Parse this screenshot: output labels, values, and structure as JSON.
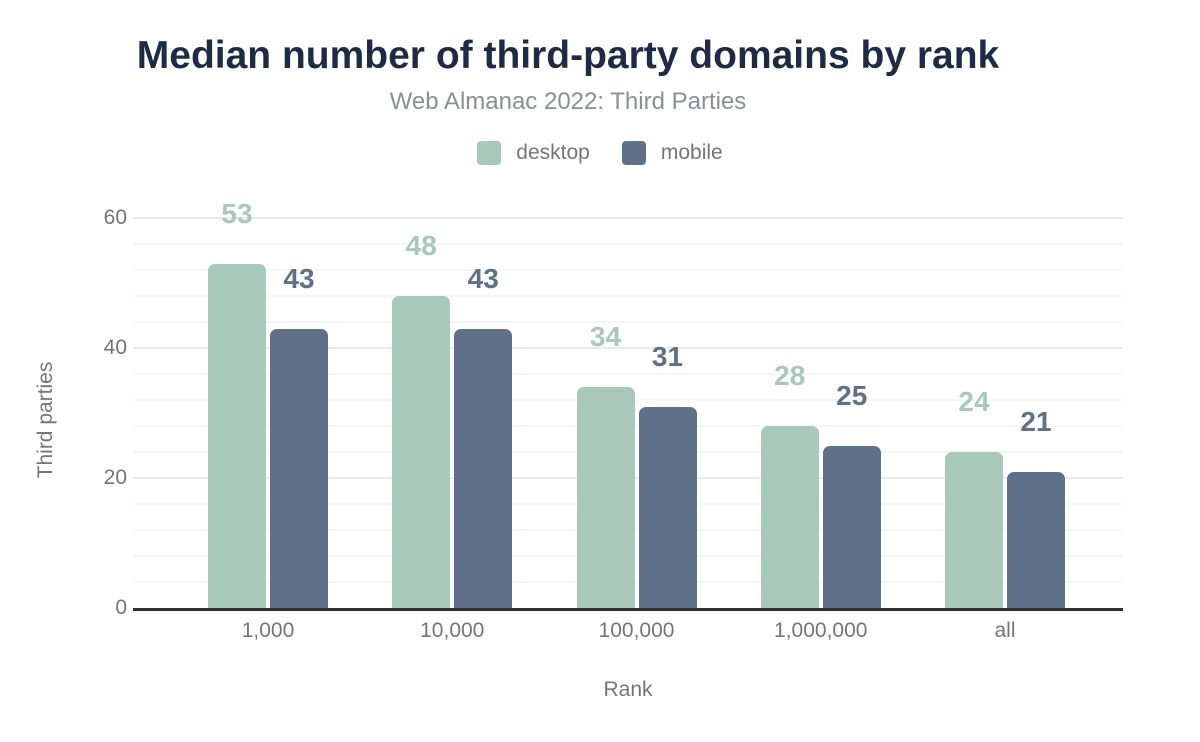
{
  "chart_data": {
    "type": "bar",
    "title": "Median number of third-party domains by rank",
    "subtitle": "Web Almanac 2022: Third Parties",
    "xlabel": "Rank",
    "ylabel": "Third parties",
    "categories": [
      "1,000",
      "10,000",
      "100,000",
      "1,000,000",
      "all"
    ],
    "series": [
      {
        "name": "desktop",
        "color": "#a7c8ba",
        "values": [
          53,
          48,
          34,
          28,
          24
        ]
      },
      {
        "name": "mobile",
        "color": "#5f7189",
        "values": [
          43,
          43,
          31,
          25,
          21
        ]
      }
    ],
    "y_ticks": [
      0,
      20,
      40,
      60
    ],
    "ylim": [
      0,
      62
    ],
    "minor_grid_step": 4,
    "grid": "horizontal major+minor",
    "legend_position": "top",
    "bar_value_labels": true
  },
  "colors": {
    "background": "#ffffff",
    "title": "#1e2b47",
    "subtitle": "#898f94",
    "axis_text": "#757575",
    "axis_line": "#303030",
    "grid_major": "#e8eaec",
    "grid_minor": "#f5f6f6",
    "desktop": "#a7c8ba",
    "mobile": "#5f7189"
  }
}
